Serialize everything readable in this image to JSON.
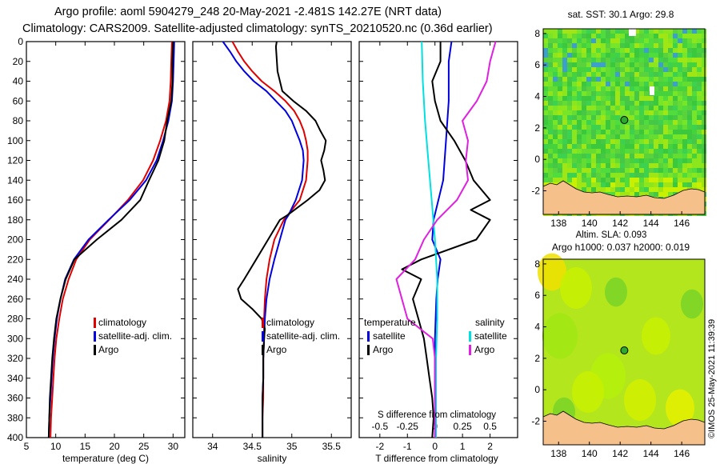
{
  "header": {
    "line1": "Argo profile: aoml 5904279_248 20-May-2021 -2.481S 142.27E (NRT data)",
    "line2": "Climatology: CARS2009. Satellite-adjusted climatology: synTS_20210520.nc (0.36d earlier)"
  },
  "colors": {
    "climatology": "#e00000",
    "satellite": "#0000e0",
    "argo": "#000000",
    "sat_salinity": "#00e0e0",
    "sat_diff_salinity": "#e020e0",
    "land": "#f5c08a",
    "argo_marker": "#2ea82e"
  },
  "chart_data": [
    {
      "id": "temp",
      "type": "line",
      "xlabel": "temperature (deg C)",
      "ylabel": "depth",
      "xlim": [
        5,
        32
      ],
      "ylim": [
        0,
        400
      ],
      "xticks": [
        5,
        10,
        15,
        20,
        25,
        30
      ],
      "yticks": [
        0,
        20,
        40,
        60,
        80,
        100,
        120,
        140,
        160,
        180,
        200,
        220,
        240,
        260,
        280,
        300,
        320,
        340,
        360,
        380,
        400
      ],
      "legend": [
        "climatology",
        "satellite-adj. clim.",
        "Argo"
      ],
      "legend_placement": "lower-right",
      "series": [
        {
          "name": "climatology",
          "color": "red",
          "depth": [
            0,
            20,
            40,
            60,
            80,
            100,
            120,
            140,
            160,
            180,
            200,
            220,
            240,
            260,
            280,
            300,
            320,
            340,
            360,
            380,
            400
          ],
          "values": [
            29.8,
            29.7,
            29.6,
            29.4,
            28.8,
            27.8,
            26.6,
            24.9,
            22.3,
            19.1,
            15.8,
            13.5,
            12.2,
            11.2,
            10.6,
            10.1,
            9.8,
            9.6,
            9.4,
            9.2,
            9.1
          ]
        },
        {
          "name": "satellite-adj. clim.",
          "color": "blue",
          "depth": [
            0,
            20,
            40,
            60,
            80,
            100,
            120,
            140,
            160,
            180,
            200,
            220,
            240,
            260,
            280,
            300,
            320,
            340,
            360,
            380,
            400
          ],
          "values": [
            30.2,
            30.1,
            30.0,
            29.8,
            29.2,
            28.3,
            27.2,
            25.4,
            22.6,
            19.0,
            15.6,
            13.1,
            11.6,
            10.8,
            10.2,
            9.8,
            9.5,
            9.3,
            9.1,
            8.9,
            8.8
          ]
        },
        {
          "name": "Argo",
          "color": "black",
          "depth": [
            0,
            20,
            40,
            60,
            80,
            100,
            120,
            140,
            160,
            180,
            200,
            220,
            240,
            260,
            280,
            300,
            320,
            340,
            360,
            380,
            400
          ],
          "values": [
            30.0,
            29.9,
            29.9,
            29.7,
            29.0,
            28.5,
            27.5,
            25.9,
            24.4,
            21.2,
            17.0,
            13.2,
            11.7,
            10.8,
            10.1,
            9.7,
            9.4,
            9.2,
            9.0,
            8.9,
            8.8
          ]
        }
      ]
    },
    {
      "id": "sal",
      "type": "line",
      "xlabel": "salinity",
      "ylabel": "depth",
      "xlim": [
        33.75,
        35.75
      ],
      "ylim": [
        0,
        400
      ],
      "xticks": [
        34,
        34.5,
        35,
        35.5
      ],
      "legend": [
        "climatology",
        "satellite-adj. clim.",
        "Argo"
      ],
      "legend_placement": "lower-right",
      "series": [
        {
          "name": "climatology",
          "color": "red",
          "depth": [
            0,
            10,
            20,
            30,
            40,
            50,
            60,
            70,
            80,
            90,
            100,
            110,
            120,
            140,
            160,
            175,
            180,
            200,
            220,
            240,
            260,
            280,
            300,
            320,
            340,
            360,
            380,
            400
          ],
          "values": [
            34.25,
            34.32,
            34.4,
            34.5,
            34.62,
            34.78,
            34.92,
            35.03,
            35.1,
            35.15,
            35.18,
            35.2,
            35.2,
            35.18,
            35.1,
            34.95,
            34.9,
            34.78,
            34.72,
            34.68,
            34.66,
            34.65,
            34.65,
            34.64,
            34.64,
            34.64,
            34.63,
            34.63
          ]
        },
        {
          "name": "satellite-adj. clim.",
          "color": "blue",
          "depth": [
            0,
            10,
            20,
            30,
            40,
            50,
            60,
            70,
            80,
            90,
            100,
            110,
            120,
            140,
            160,
            175,
            180,
            200,
            220,
            240,
            260,
            280,
            300,
            320,
            340,
            360,
            380,
            400
          ],
          "values": [
            34.13,
            34.22,
            34.3,
            34.4,
            34.52,
            34.68,
            34.8,
            34.92,
            35.0,
            35.05,
            35.1,
            35.14,
            35.15,
            35.13,
            35.05,
            34.96,
            34.92,
            34.85,
            34.78,
            34.72,
            34.68,
            34.66,
            34.65,
            34.64,
            34.64,
            34.63,
            34.63,
            34.63
          ]
        },
        {
          "name": "Argo",
          "color": "black",
          "depth": [
            0,
            5,
            30,
            50,
            60,
            70,
            80,
            90,
            100,
            110,
            120,
            130,
            140,
            150,
            160,
            175,
            180,
            200,
            220,
            240,
            250,
            260,
            270,
            280,
            290,
            300,
            320,
            340,
            360,
            380,
            400
          ],
          "values": [
            34.81,
            34.8,
            34.82,
            34.88,
            35.02,
            35.18,
            35.3,
            35.36,
            35.43,
            35.41,
            35.37,
            35.4,
            35.42,
            35.35,
            35.2,
            34.95,
            34.85,
            34.7,
            34.55,
            34.4,
            34.32,
            34.36,
            34.5,
            34.62,
            34.66,
            34.65,
            34.64,
            34.64,
            34.63,
            34.63,
            34.63
          ]
        }
      ]
    },
    {
      "id": "diff",
      "type": "line",
      "xlabel": "T difference from climatology",
      "xlabel2": "S difference from climatology",
      "xlim": [
        -2.75,
        3
      ],
      "ylim": [
        0,
        400
      ],
      "xticks": [
        -2,
        -1,
        0,
        1,
        2
      ],
      "xticks_top": [
        -0.5,
        -0.25,
        0,
        0.25,
        0.5
      ],
      "xtick_labels_top": [
        "-0.5",
        "-0.25",
        "0",
        "0.25",
        "0.5"
      ],
      "legend_left_title": "temperature",
      "legend_right_title": "salinity",
      "legend_left": [
        "satellite",
        "Argo"
      ],
      "legend_right": [
        "satellite",
        "Argo"
      ],
      "series": [
        {
          "name": "temperature satellite",
          "color": "blue",
          "depth": [
            0,
            20,
            60,
            100,
            140,
            180,
            200,
            220,
            240,
            260,
            300,
            340,
            400
          ],
          "values": [
            0.6,
            0.5,
            0.5,
            0.4,
            0.3,
            -0.05,
            -0.1,
            0.2,
            0.1,
            0.05,
            0.0,
            0.0,
            0.0
          ]
        },
        {
          "name": "temperature Argo",
          "color": "black",
          "depth": [
            0,
            20,
            40,
            60,
            80,
            100,
            110,
            120,
            140,
            160,
            170,
            180,
            200,
            220,
            230,
            240,
            260,
            280,
            300,
            320,
            340,
            360,
            380,
            400
          ],
          "values": [
            0.2,
            0.2,
            -0.1,
            0.0,
            0.2,
            0.7,
            0.9,
            1.1,
            1.4,
            2.0,
            1.3,
            2.0,
            1.5,
            -0.5,
            -1.2,
            -0.5,
            -0.8,
            -0.6,
            -0.4,
            -0.3,
            -0.2,
            -0.1,
            -0.05,
            -0.1
          ]
        },
        {
          "name": "salinity satellite",
          "color": "cyan",
          "depth": [
            0,
            40,
            80,
            120,
            160,
            200,
            240,
            280,
            320,
            400
          ],
          "values": [
            -0.12,
            -0.11,
            -0.09,
            -0.06,
            -0.03,
            0.0,
            0.02,
            0.02,
            0.01,
            0.01
          ]
        },
        {
          "name": "salinity Argo",
          "color": "magenta",
          "depth": [
            0,
            20,
            40,
            60,
            80,
            100,
            120,
            140,
            160,
            180,
            200,
            220,
            240,
            260,
            280,
            300,
            320,
            340,
            360,
            380,
            400
          ],
          "values": [
            0.55,
            0.5,
            0.47,
            0.38,
            0.25,
            0.3,
            0.28,
            0.3,
            0.2,
            0.02,
            -0.1,
            -0.18,
            -0.35,
            -0.3,
            -0.25,
            -0.02,
            0.0,
            0.0,
            0.0,
            0.0,
            0.0
          ]
        }
      ]
    },
    {
      "id": "sst_map",
      "type": "heatmap",
      "title": "sat. SST: 30.1 Argo: 29.8",
      "xlim": [
        137,
        147.5
      ],
      "ylim": [
        -3.5,
        8.3
      ],
      "xticks": [
        138,
        140,
        142,
        144,
        146
      ],
      "yticks": [
        -2,
        0,
        2,
        4,
        6,
        8
      ],
      "argo_position": [
        142.27,
        -2.481
      ],
      "marker_lat_on_plot": 2.5
    },
    {
      "id": "sla_map",
      "type": "heatmap",
      "title": "Altim. SLA: 0.093",
      "subtitle": "Argo h1000: 0.037 h2000: 0.019",
      "xlim": [
        137,
        147.5
      ],
      "ylim": [
        -3.5,
        8.3
      ],
      "xticks": [
        138,
        140,
        142,
        144,
        146
      ],
      "yticks": [
        -2,
        0,
        2,
        4,
        6,
        8
      ],
      "argo_position": [
        142.27,
        -2.481
      ],
      "marker_lat_on_plot": 2.5
    }
  ],
  "footer": {
    "stamp": "©IMOS 25-May-2021 11:39:39"
  }
}
